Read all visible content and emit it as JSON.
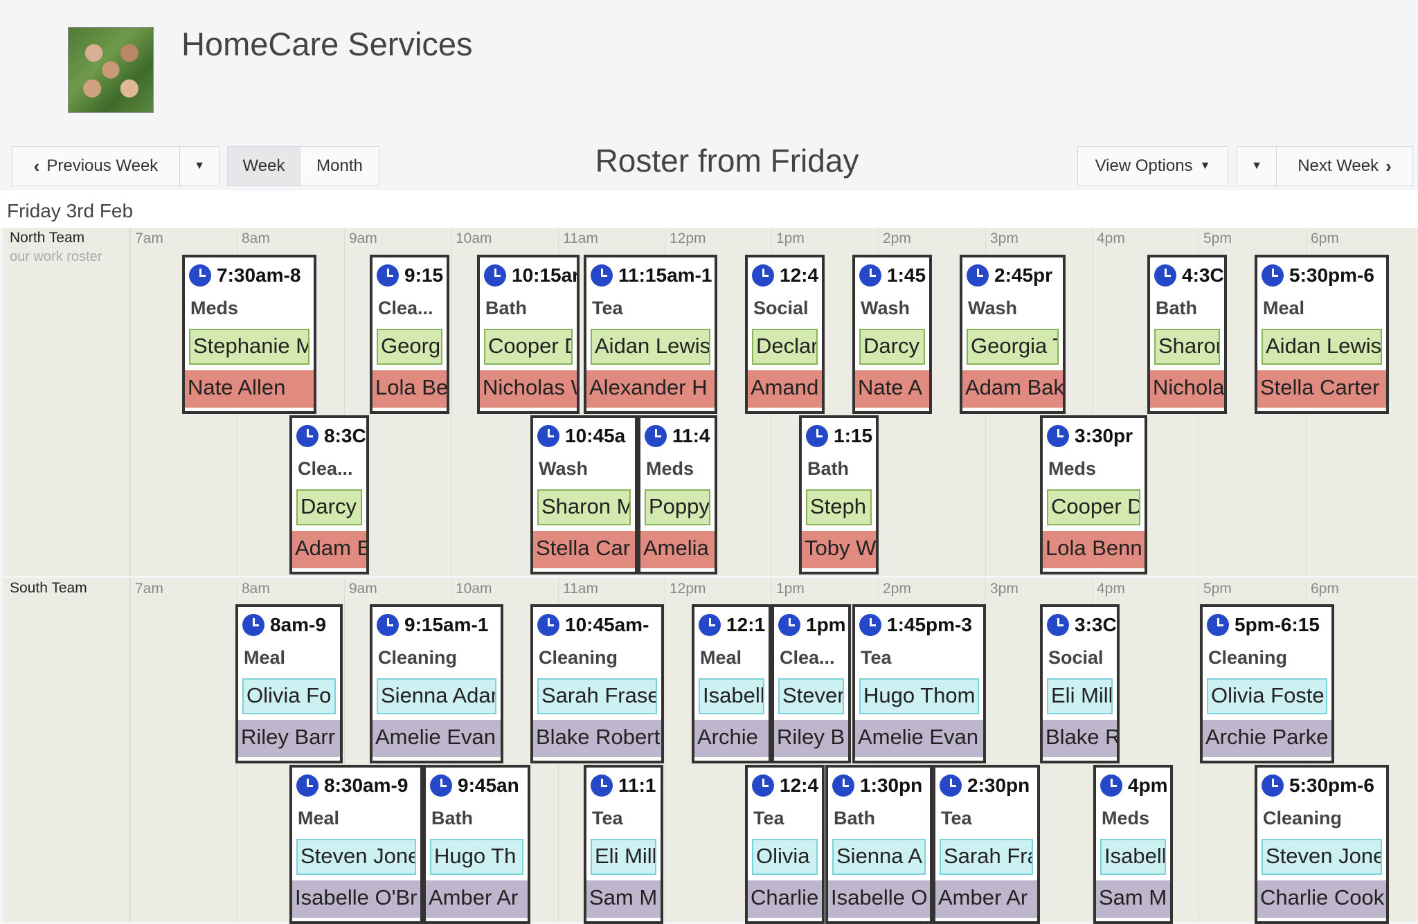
{
  "app": {
    "title": "HomeCare Services"
  },
  "toolbar": {
    "previous_week": "Previous Week",
    "week": "Week",
    "month": "Month",
    "title": "Roster from Friday",
    "view_options": "View Options",
    "next_week": "Next Week"
  },
  "date_label": "Friday 3rd Feb",
  "hours": [
    "7am",
    "8am",
    "9am",
    "10am",
    "11am",
    "12pm",
    "1pm",
    "2pm",
    "3pm",
    "4pm",
    "5pm",
    "6pm"
  ],
  "teams": [
    {
      "name": "North Team",
      "subtitle": "our work roster",
      "shifts": [
        {
          "time": "7:30am-8",
          "task": "Meds",
          "worker": "Stephanie M",
          "client": "Nate Allen"
        },
        {
          "time": "9:15",
          "task": "Clea...",
          "worker": "Georg",
          "client": "Lola Be"
        },
        {
          "time": "10:15ar",
          "task": "Bath",
          "worker": "Cooper D",
          "client": "Nicholas W"
        },
        {
          "time": "11:15am-1",
          "task": "Tea",
          "worker": "Aidan Lewis",
          "client": "Alexander H"
        },
        {
          "time": "12:4",
          "task": "Social",
          "worker": "Declar",
          "client": "Amand"
        },
        {
          "time": "1:45",
          "task": "Wash",
          "worker": "Darcy",
          "client": "Nate A"
        },
        {
          "time": "2:45pr",
          "task": "Wash",
          "worker": "Georgia T",
          "client": "Adam Bak"
        },
        {
          "time": "4:3C",
          "task": "Bath",
          "worker": "Sharor",
          "client": "Nichola"
        },
        {
          "time": "5:30pm-6",
          "task": "Meal",
          "worker": "Aidan Lewis",
          "client": "Stella Carter"
        },
        {
          "time": "8:3C",
          "task": "Clea...",
          "worker": "Darcy",
          "client": "Adam B"
        },
        {
          "time": "10:45a",
          "task": "Wash",
          "worker": "Sharon M",
          "client": "Stella Car"
        },
        {
          "time": "11:4",
          "task": "Meds",
          "worker": "Poppy",
          "client": "Amelia"
        },
        {
          "time": "1:15",
          "task": "Bath",
          "worker": "Steph",
          "client": "Toby W"
        },
        {
          "time": "3:30pr",
          "task": "Meds",
          "worker": "Cooper D",
          "client": "Lola Benn"
        }
      ]
    },
    {
      "name": "South Team",
      "subtitle": "",
      "shifts": [
        {
          "time": "8am-9",
          "task": "Meal",
          "worker": "Olivia Fo",
          "client": "Riley Barr"
        },
        {
          "time": "9:15am-1",
          "task": "Cleaning",
          "worker": "Sienna Adar",
          "client": "Amelie Evan"
        },
        {
          "time": "10:45am-",
          "task": "Cleaning",
          "worker": "Sarah Frase",
          "client": "Blake Robert"
        },
        {
          "time": "12:1",
          "task": "Meal",
          "worker": "Isabell",
          "client": "Archie"
        },
        {
          "time": "1pm",
          "task": "Clea...",
          "worker": "Stever",
          "client": "Riley B"
        },
        {
          "time": "1:45pm-3",
          "task": "Tea",
          "worker": "Hugo Thom",
          "client": "Amelie Evan"
        },
        {
          "time": "3:3C",
          "task": "Social",
          "worker": "Eli Mill",
          "client": "Blake R"
        },
        {
          "time": "5pm-6:15",
          "task": "Cleaning",
          "worker": "Olivia Foste",
          "client": "Archie Parke"
        },
        {
          "time": "8:30am-9",
          "task": "Meal",
          "worker": "Steven Jone",
          "client": "Isabelle O'Br"
        },
        {
          "time": "9:45an",
          "task": "Bath",
          "worker": "Hugo Th",
          "client": "Amber Ar"
        },
        {
          "time": "11:1",
          "task": "Tea",
          "worker": "Eli Mill",
          "client": "Sam M"
        },
        {
          "time": "12:4",
          "task": "Tea",
          "worker": "Olivia",
          "client": "Charlie"
        },
        {
          "time": "1:30pn",
          "task": "Bath",
          "worker": "Sienna A",
          "client": "Isabelle O"
        },
        {
          "time": "2:30pn",
          "task": "Tea",
          "worker": "Sarah Fra",
          "client": "Amber Ar"
        },
        {
          "time": "4pm",
          "task": "Meds",
          "worker": "Isabell",
          "client": "Sam M"
        },
        {
          "time": "5:30pm-6",
          "task": "Cleaning",
          "worker": "Steven Jone",
          "client": "Charlie Cook"
        }
      ]
    }
  ]
}
